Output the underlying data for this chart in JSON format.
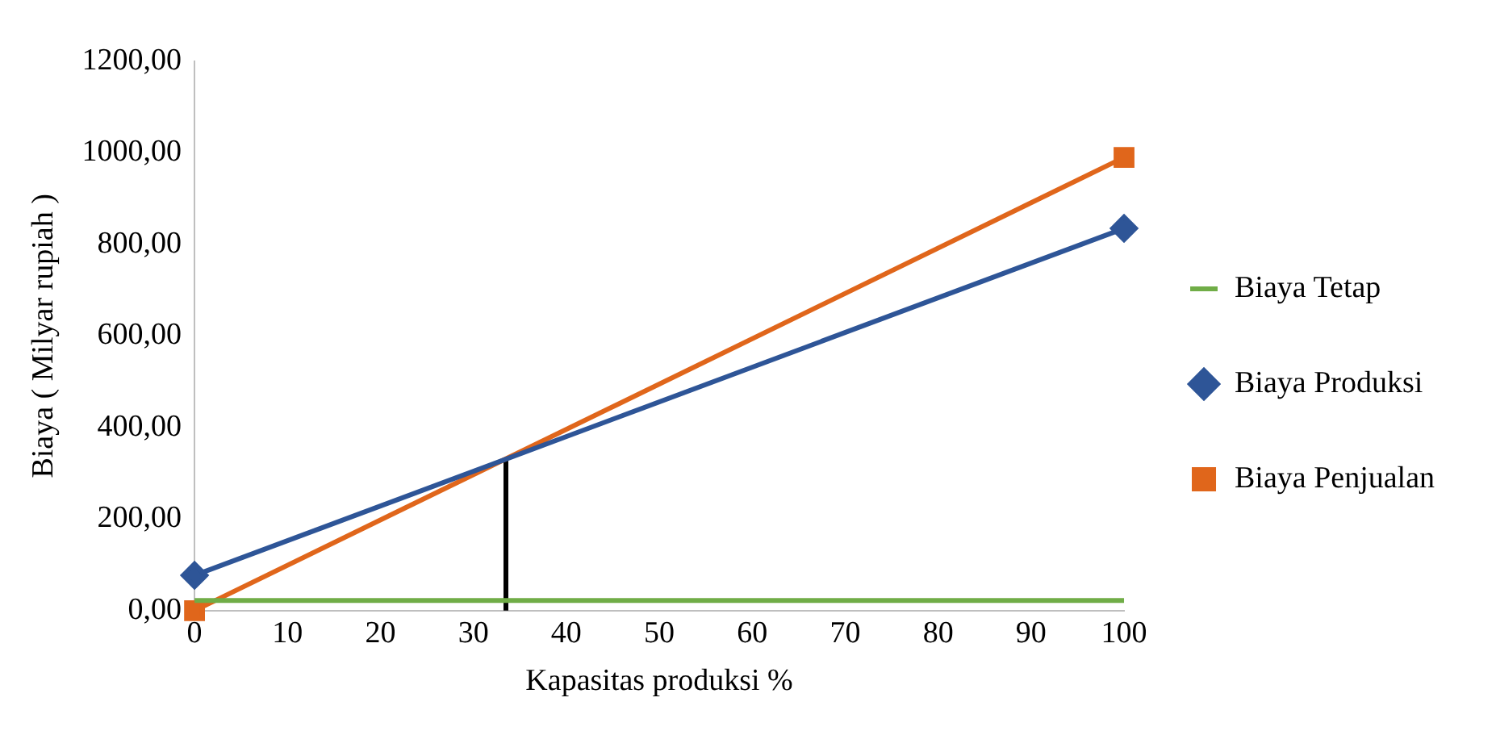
{
  "chart_data": {
    "type": "line",
    "xlabel": "Kapasitas produksi %",
    "ylabel": "Biaya ( Milyar rupiah )",
    "x": [
      0,
      100
    ],
    "series": [
      {
        "name": "Biaya Tetap",
        "color": "#70ad47",
        "values": [
          22,
          22
        ],
        "marker": "none"
      },
      {
        "name": "Biaya Produksi",
        "color": "#2e5597",
        "values": [
          77,
          835
        ],
        "marker": "diamond"
      },
      {
        "name": "Biaya Penjualan",
        "color": "#e0661b",
        "values": [
          0,
          990
        ],
        "marker": "square"
      },
      {
        "color": "#000000",
        "x": [
          33.5,
          33.5
        ],
        "values": [
          0,
          330
        ],
        "marker": "none"
      }
    ],
    "xlim": [
      0,
      100
    ],
    "xticks": [
      0,
      10,
      20,
      30,
      40,
      50,
      60,
      70,
      80,
      90,
      100
    ],
    "ylim": [
      0,
      1200
    ],
    "yticks": [
      {
        "value": 0,
        "label": "0,00"
      },
      {
        "value": 200,
        "label": "200,00"
      },
      {
        "value": 400,
        "label": "400,00"
      },
      {
        "value": 600,
        "label": "600,00"
      },
      {
        "value": 800,
        "label": "800,00"
      },
      {
        "value": 1000,
        "label": "1000,00"
      },
      {
        "value": 1200,
        "label": "1200,00"
      }
    ],
    "grid": false,
    "legend": "right",
    "line_style": "solid"
  }
}
